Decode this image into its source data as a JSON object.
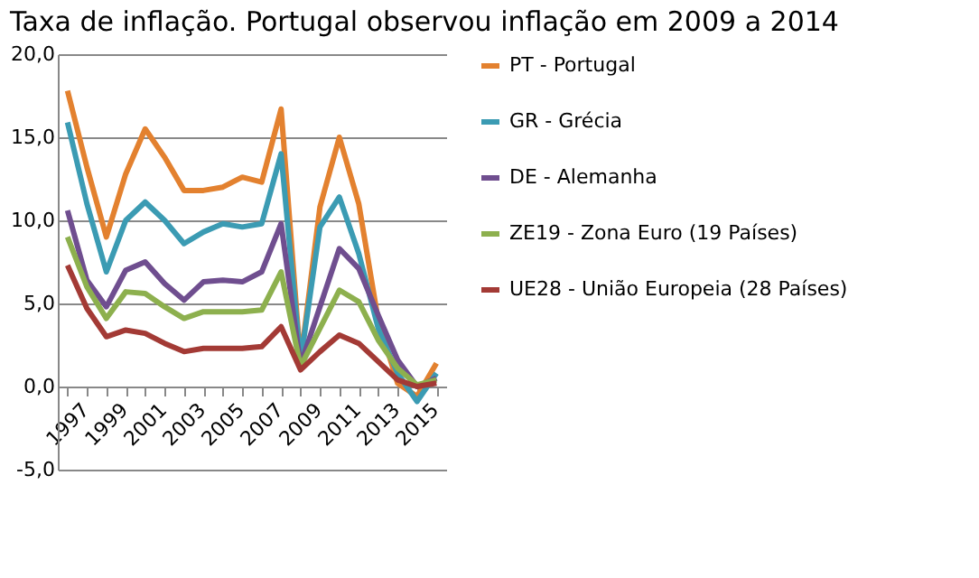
{
  "chart_data": {
    "type": "line",
    "title": "Taxa de inflação. Portugal observou inflação em 2009 a 2014",
    "categories": [
      "1997",
      null,
      "1999",
      null,
      "2001",
      null,
      "2003",
      null,
      "2005",
      null,
      "2007",
      null,
      "2009",
      null,
      "2011",
      null,
      "2013",
      null,
      "2015",
      null
    ],
    "series": [
      {
        "name": "PT - Portugal",
        "color": "#e3812f",
        "values": [
          17.8,
          13.2,
          9.0,
          12.8,
          15.5,
          13.8,
          11.8,
          11.8,
          12.0,
          12.6,
          12.3,
          16.7,
          1.5,
          10.8,
          15.0,
          11.0,
          4.0,
          0.2,
          -0.6,
          1.4
        ]
      },
      {
        "name": "GR - Grécia",
        "color": "#3b9bb3",
        "values": [
          15.9,
          11.0,
          6.9,
          10.0,
          11.1,
          10.0,
          8.6,
          9.3,
          9.8,
          9.6,
          9.8,
          14.0,
          1.5,
          9.6,
          11.4,
          8.0,
          3.5,
          0.8,
          -0.9,
          0.8
        ]
      },
      {
        "name": "DE - Alemanha",
        "color": "#6f4e8f",
        "values": [
          10.6,
          6.4,
          4.8,
          7.0,
          7.5,
          6.2,
          5.2,
          6.3,
          6.4,
          6.3,
          6.9,
          9.8,
          1.3,
          4.8,
          8.3,
          7.1,
          4.3,
          1.6,
          0.0,
          0.5
        ]
      },
      {
        "name": "ZE19 - Zona Euro (19 Países)",
        "color": "#8db04e",
        "values": [
          9.0,
          6.0,
          4.1,
          5.7,
          5.6,
          4.8,
          4.1,
          4.5,
          4.5,
          4.5,
          4.6,
          6.9,
          1.2,
          3.5,
          5.8,
          5.1,
          2.8,
          1.1,
          0.1,
          0.4
        ]
      },
      {
        "name": "UE28 - União Europeia (28 Países)",
        "color": "#a33a35",
        "values": [
          7.3,
          4.7,
          3.0,
          3.4,
          3.2,
          2.6,
          2.1,
          2.3,
          2.3,
          2.3,
          2.4,
          3.6,
          1.0,
          2.1,
          3.1,
          2.6,
          1.5,
          0.4,
          0.0,
          0.2
        ]
      }
    ],
    "ylim": [
      -5,
      20
    ],
    "yticks": [
      {
        "value": -5,
        "label": "-5,0"
      },
      {
        "value": 0,
        "label": "0,0"
      },
      {
        "value": 5,
        "label": "5,0"
      },
      {
        "value": 10,
        "label": "10,0"
      },
      {
        "value": 15,
        "label": "15,0"
      },
      {
        "value": 20,
        "label": "20,0"
      }
    ],
    "grid": "y",
    "legend": "right",
    "marker": "none",
    "line_style": "solid"
  }
}
